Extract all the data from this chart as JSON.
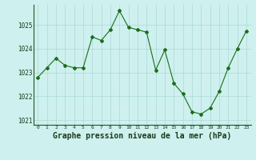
{
  "x": [
    0,
    1,
    2,
    3,
    4,
    5,
    6,
    7,
    8,
    9,
    10,
    11,
    12,
    13,
    14,
    15,
    16,
    17,
    18,
    19,
    20,
    21,
    22,
    23
  ],
  "y": [
    1022.8,
    1023.2,
    1023.6,
    1023.3,
    1023.2,
    1023.2,
    1024.5,
    1024.35,
    1024.8,
    1025.6,
    1024.9,
    1024.8,
    1024.7,
    1023.1,
    1023.95,
    1022.55,
    1022.1,
    1021.35,
    1021.25,
    1021.5,
    1022.2,
    1023.2,
    1024.0,
    1024.75
  ],
  "line_color": "#1a6e1a",
  "marker": "D",
  "marker_size": 2,
  "bg_color": "#cef0ee",
  "grid_color": "#aad8d8",
  "xlabel": "Graphe pression niveau de la mer (hPa)",
  "xlabel_fontsize": 7,
  "xlabel_color": "#1a3a1a",
  "tick_label_color": "#1a3a1a",
  "ylim": [
    1020.8,
    1025.85
  ],
  "yticks": [
    1021,
    1022,
    1023,
    1024,
    1025
  ],
  "xlim": [
    -0.5,
    23.5
  ],
  "xticks": [
    0,
    1,
    2,
    3,
    4,
    5,
    6,
    7,
    8,
    9,
    10,
    11,
    12,
    13,
    14,
    15,
    16,
    17,
    18,
    19,
    20,
    21,
    22,
    23
  ]
}
